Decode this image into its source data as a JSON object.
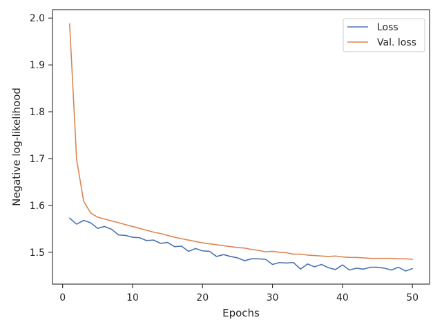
{
  "chart_data": {
    "type": "line",
    "title": "",
    "xlabel": "Epochs",
    "ylabel": "Negative log-likelihood",
    "xlim": [
      -1.45,
      52.45
    ],
    "ylim": [
      1.432,
      2.018
    ],
    "xticks": [
      0,
      10,
      20,
      30,
      40,
      50
    ],
    "yticks": [
      1.5,
      1.6,
      1.7,
      1.8,
      1.9,
      2.0
    ],
    "ytick_labels": [
      "1.5",
      "1.6",
      "1.7",
      "1.8",
      "1.9",
      "2.0"
    ],
    "grid": false,
    "legend_position": "upper right",
    "x": [
      1,
      2,
      3,
      4,
      5,
      6,
      7,
      8,
      9,
      10,
      11,
      12,
      13,
      14,
      15,
      16,
      17,
      18,
      19,
      20,
      21,
      22,
      23,
      24,
      25,
      26,
      27,
      28,
      29,
      30,
      31,
      32,
      33,
      34,
      35,
      36,
      37,
      38,
      39,
      40,
      41,
      42,
      43,
      44,
      45,
      46,
      47,
      48,
      49,
      50
    ],
    "series": [
      {
        "name": "Loss",
        "color": "#4c72b0",
        "values": [
          1.573,
          1.56,
          1.568,
          1.563,
          1.551,
          1.555,
          1.549,
          1.537,
          1.536,
          1.532,
          1.531,
          1.525,
          1.526,
          1.519,
          1.521,
          1.512,
          1.513,
          1.502,
          1.508,
          1.503,
          1.502,
          1.491,
          1.495,
          1.491,
          1.488,
          1.482,
          1.486,
          1.486,
          1.485,
          1.474,
          1.478,
          1.477,
          1.478,
          1.464,
          1.475,
          1.469,
          1.474,
          1.467,
          1.463,
          1.473,
          1.462,
          1.466,
          1.464,
          1.468,
          1.468,
          1.466,
          1.462,
          1.468,
          1.46,
          1.465
        ]
      },
      {
        "name": "Val. loss",
        "color": "#dd8452",
        "values": [
          1.988,
          1.698,
          1.609,
          1.584,
          1.575,
          1.571,
          1.567,
          1.563,
          1.559,
          1.555,
          1.551,
          1.547,
          1.543,
          1.54,
          1.536,
          1.532,
          1.529,
          1.526,
          1.523,
          1.52,
          1.518,
          1.516,
          1.514,
          1.512,
          1.51,
          1.509,
          1.506,
          1.504,
          1.501,
          1.502,
          1.5,
          1.499,
          1.496,
          1.496,
          1.494,
          1.493,
          1.492,
          1.491,
          1.492,
          1.49,
          1.489,
          1.489,
          1.488,
          1.487,
          1.487,
          1.487,
          1.487,
          1.486,
          1.486,
          1.485
        ]
      }
    ]
  }
}
